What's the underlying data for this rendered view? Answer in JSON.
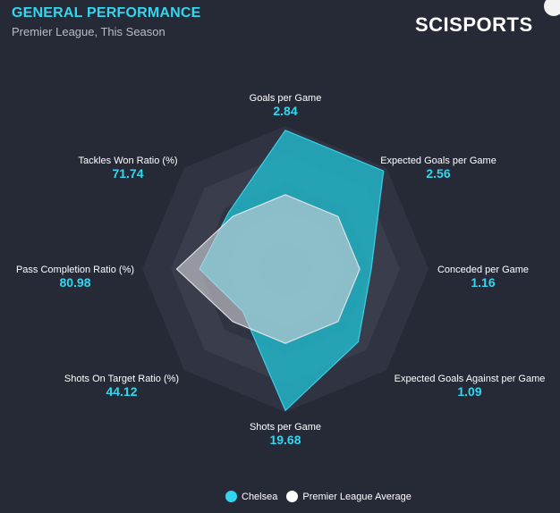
{
  "header": {
    "title": "GENERAL PERFORMANCE",
    "subtitle": "Premier League, This Season",
    "brand": "SCISPORTS"
  },
  "colors": {
    "background": "#262a37",
    "accent": "#33d6f0",
    "team_fill": "#21b9cc",
    "average_fill": "#c9c9cf",
    "ring_outer": "#2f3342",
    "ring_inner": "#393d4c"
  },
  "chart_data": {
    "type": "radar",
    "title": "GENERAL PERFORMANCE",
    "subtitle": "Premier League, This Season",
    "axes": [
      {
        "label": "Goals per Game",
        "value": "2.84"
      },
      {
        "label": "Expected Goals per Game",
        "value": "2.56"
      },
      {
        "label": "Conceded per Game",
        "value": "1.16"
      },
      {
        "label": "Expected Goals Against per Game",
        "value": "1.09"
      },
      {
        "label": "Shots per Game",
        "value": "19.68"
      },
      {
        "label": "Shots On Target Ratio (%)",
        "value": "44.12"
      },
      {
        "label": "Pass Completion Ratio (%)",
        "value": "80.98"
      },
      {
        "label": "Tackles Won Ratio (%)",
        "value": "71.74"
      }
    ],
    "series": [
      {
        "name": "Chelsea",
        "color": "#21b9cc",
        "relative_values": [
          0.97,
          0.97,
          0.6,
          0.72,
          0.99,
          0.42,
          0.6,
          0.56
        ]
      },
      {
        "name": "Premier League Average",
        "color": "#c9c9cf",
        "relative_values": [
          0.52,
          0.52,
          0.52,
          0.52,
          0.52,
          0.52,
          0.76,
          0.52
        ]
      }
    ],
    "rings": 5,
    "legend": "bottom"
  }
}
